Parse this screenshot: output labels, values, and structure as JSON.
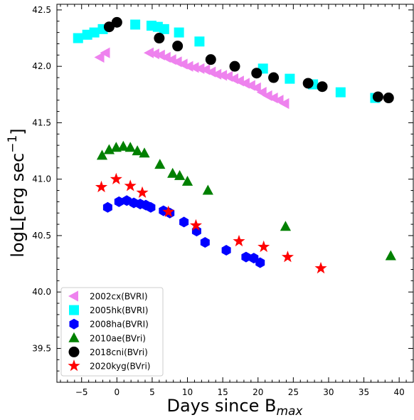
{
  "chart_data": {
    "type": "scatter",
    "xlabel": "Days since B",
    "xlabel_sub": "max",
    "ylabel": "logL[erg sec",
    "ylabel_sup": "−1",
    "ylabel_close": "]",
    "xlim": [
      -8.5,
      42
    ],
    "ylim": [
      39.2,
      42.55
    ],
    "x_ticks": [
      -5,
      0,
      5,
      10,
      15,
      20,
      25,
      30,
      35,
      40
    ],
    "x_tick_labels": [
      "−5",
      "0",
      "5",
      "10",
      "15",
      "20",
      "25",
      "30",
      "35",
      "40"
    ],
    "y_ticks": [
      39.5,
      40.0,
      40.5,
      41.0,
      41.5,
      42.0,
      42.5
    ],
    "y_tick_labels": [
      "39.5",
      "40.0",
      "40.5",
      "41.0",
      "41.5",
      "42.0",
      "42.5"
    ],
    "grid": false,
    "legend_position": "lower-left",
    "series": [
      {
        "name": "2002cx(BVRI)",
        "color": "#ee82ee",
        "marker": "triangle-left",
        "points": [
          [
            -2.4,
            42.08
          ],
          [
            -1.6,
            42.12
          ],
          [
            4.6,
            42.12
          ],
          [
            5.4,
            42.11
          ],
          [
            6.2,
            42.1
          ],
          [
            7.0,
            42.08
          ],
          [
            7.8,
            42.06
          ],
          [
            8.6,
            42.04
          ],
          [
            9.4,
            42.02
          ],
          [
            10.2,
            42.0
          ],
          [
            11.0,
            41.99
          ],
          [
            11.8,
            41.98
          ],
          [
            12.6,
            41.97
          ],
          [
            13.4,
            41.95
          ],
          [
            14.2,
            41.93
          ],
          [
            15.0,
            41.92
          ],
          [
            15.8,
            41.91
          ],
          [
            16.6,
            41.89
          ],
          [
            17.4,
            41.87
          ],
          [
            18.2,
            41.85
          ],
          [
            19.0,
            41.83
          ],
          [
            19.8,
            41.81
          ],
          [
            20.6,
            41.77
          ],
          [
            21.4,
            41.74
          ],
          [
            22.2,
            41.72
          ],
          [
            23.0,
            41.7
          ],
          [
            23.8,
            41.67
          ]
        ]
      },
      {
        "name": "2005hk(BVRI)",
        "color": "#00ffff",
        "marker": "square",
        "points": [
          [
            -5.5,
            42.25
          ],
          [
            -4.2,
            42.28
          ],
          [
            -3.2,
            42.3
          ],
          [
            -2.0,
            42.33
          ],
          [
            2.6,
            42.37
          ],
          [
            4.9,
            42.36
          ],
          [
            5.8,
            42.35
          ],
          [
            6.7,
            42.33
          ],
          [
            8.8,
            42.3
          ],
          [
            11.7,
            42.22
          ],
          [
            20.7,
            41.98
          ],
          [
            24.5,
            41.89
          ],
          [
            27.8,
            41.84
          ],
          [
            31.7,
            41.77
          ],
          [
            36.6,
            41.72
          ]
        ]
      },
      {
        "name": "2008ha(BVRI)",
        "color": "#0000ff",
        "marker": "hexagon",
        "points": [
          [
            -1.3,
            40.75
          ],
          [
            0.3,
            40.8
          ],
          [
            1.4,
            40.81
          ],
          [
            2.4,
            40.79
          ],
          [
            3.3,
            40.78
          ],
          [
            4.1,
            40.77
          ],
          [
            4.8,
            40.75
          ],
          [
            6.6,
            40.72
          ],
          [
            7.5,
            40.7
          ],
          [
            9.5,
            40.62
          ],
          [
            11.3,
            40.54
          ],
          [
            12.5,
            40.44
          ],
          [
            15.5,
            40.37
          ],
          [
            18.3,
            40.31
          ],
          [
            19.4,
            40.3
          ],
          [
            20.3,
            40.26
          ]
        ]
      },
      {
        "name": "2010ae(BVri)",
        "color": "#008000",
        "marker": "triangle-up",
        "points": [
          [
            -2.1,
            41.21
          ],
          [
            -1.1,
            41.26
          ],
          [
            -0.1,
            41.28
          ],
          [
            0.9,
            41.29
          ],
          [
            1.9,
            41.28
          ],
          [
            2.9,
            41.25
          ],
          [
            3.9,
            41.23
          ],
          [
            6.1,
            41.13
          ],
          [
            7.9,
            41.05
          ],
          [
            8.9,
            41.03
          ],
          [
            10.0,
            40.98
          ],
          [
            12.9,
            40.9
          ],
          [
            23.9,
            40.58
          ],
          [
            38.8,
            40.32
          ]
        ]
      },
      {
        "name": "2018cni(BVri)",
        "color": "#000000",
        "marker": "circle",
        "points": [
          [
            -1.1,
            42.35
          ],
          [
            0.0,
            42.39
          ],
          [
            6.0,
            42.25
          ],
          [
            8.6,
            42.18
          ],
          [
            13.3,
            42.06
          ],
          [
            16.7,
            42.0
          ],
          [
            19.8,
            41.94
          ],
          [
            22.2,
            41.9
          ],
          [
            27.1,
            41.85
          ],
          [
            29.1,
            41.82
          ],
          [
            37.0,
            41.73
          ],
          [
            38.5,
            41.72
          ]
        ]
      },
      {
        "name": "2020kyg(BVri)",
        "color": "#ff0000",
        "marker": "star",
        "points": [
          [
            -2.2,
            40.93
          ],
          [
            -0.1,
            41.0
          ],
          [
            1.9,
            40.94
          ],
          [
            3.6,
            40.88
          ],
          [
            7.3,
            40.71
          ],
          [
            11.2,
            40.59
          ],
          [
            17.3,
            40.45
          ],
          [
            20.8,
            40.4
          ],
          [
            24.2,
            40.31
          ],
          [
            28.9,
            40.21
          ]
        ]
      }
    ]
  }
}
